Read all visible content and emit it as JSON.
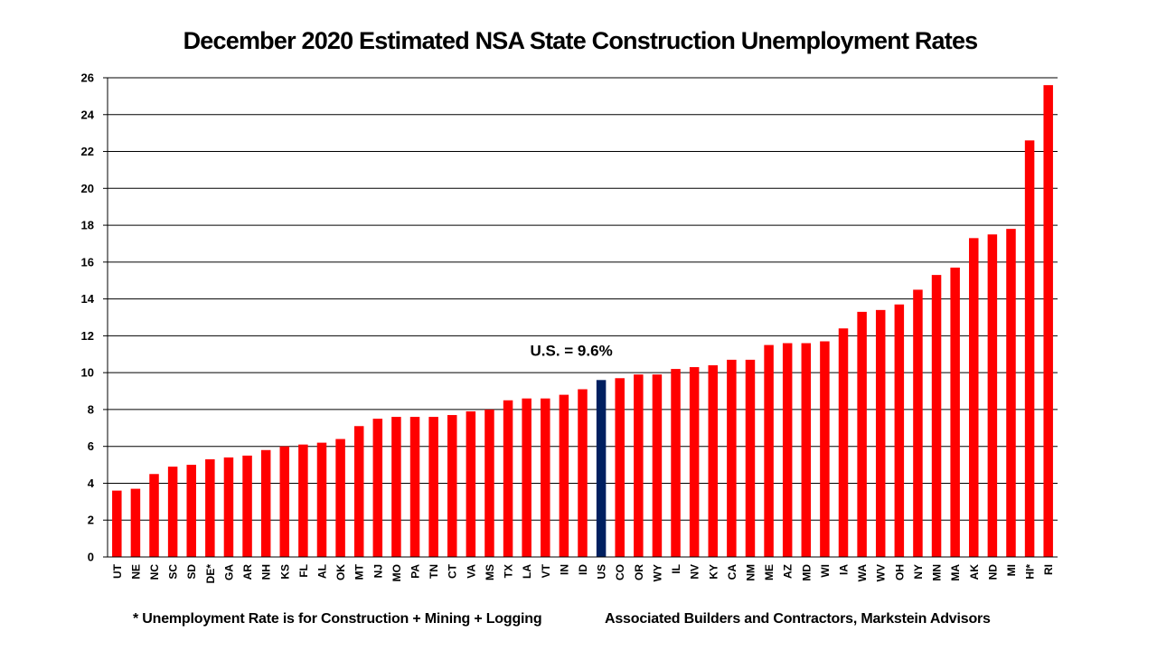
{
  "chart_data": {
    "type": "bar",
    "title": "December 2020 Estimated NSA State Construction Unemployment Rates",
    "xlabel": "",
    "ylabel": "",
    "ylim": [
      0,
      26
    ],
    "yticks": [
      0,
      2,
      4,
      6,
      8,
      10,
      12,
      14,
      16,
      18,
      20,
      22,
      24,
      26
    ],
    "grid": true,
    "legend": "none",
    "categories": [
      "UT",
      "NE",
      "NC",
      "SC",
      "SD",
      "DE*",
      "GA",
      "AR",
      "NH",
      "KS",
      "FL",
      "AL",
      "OK",
      "MT",
      "NJ",
      "MO",
      "PA",
      "TN",
      "CT",
      "VA",
      "MS",
      "TX",
      "LA",
      "VT",
      "IN",
      "ID",
      "US",
      "CO",
      "OR",
      "WY",
      "IL",
      "NV",
      "KY",
      "CA",
      "NM",
      "ME",
      "AZ",
      "MD",
      "WI",
      "IA",
      "WA",
      "WV",
      "OH",
      "NY",
      "MN",
      "MA",
      "AK",
      "ND",
      "MI",
      "HI*",
      "RI"
    ],
    "values": [
      3.6,
      3.7,
      4.5,
      4.9,
      5.0,
      5.3,
      5.4,
      5.5,
      5.8,
      6.0,
      6.1,
      6.2,
      6.4,
      7.1,
      7.5,
      7.6,
      7.6,
      7.6,
      7.7,
      7.9,
      8.0,
      8.5,
      8.6,
      8.6,
      8.8,
      9.1,
      9.6,
      9.7,
      9.9,
      9.9,
      10.2,
      10.3,
      10.4,
      10.7,
      10.7,
      11.5,
      11.6,
      11.6,
      11.7,
      12.4,
      13.3,
      13.4,
      13.7,
      14.5,
      15.3,
      15.7,
      17.3,
      17.5,
      17.8,
      22.6,
      25.6
    ],
    "highlight_category": "US",
    "colors": {
      "bar": "#ff0000",
      "highlight": "#002060",
      "grid": "#000000"
    },
    "annotations": [
      {
        "text": "U.S. = 9.6%",
        "category": "US"
      }
    ]
  },
  "footnote": "* Unemployment Rate is for Construction + Mining + Logging",
  "source": "Associated Builders and Contractors, Markstein Advisors"
}
